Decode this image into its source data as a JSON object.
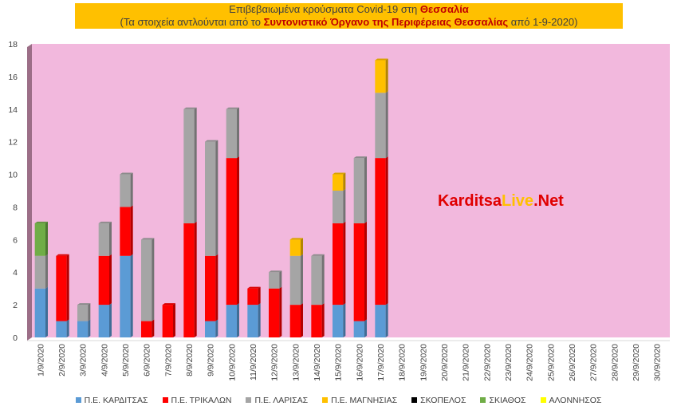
{
  "title": {
    "line1_prefix": "Επιβεβαιωμένα κρούσματα Covid-19 στη ",
    "line1_bold": "Θεσσαλία",
    "line2_prefix": "(Τα στοιχεία αντλούνται από το ",
    "line2_bold": "Συντονιστικό Όργανο της Περιφέρειας Θεσσαλίας",
    "line2_suffix": " από 1-9-2020)"
  },
  "watermark": {
    "part1": "Karditsa",
    "part2": "Live",
    "part3": ".Net"
  },
  "colors": {
    "plot_background": "#f2b8dd",
    "side_wall": "#9c6e87",
    "title_background": "#ffc000"
  },
  "chart_data": {
    "type": "bar",
    "stacked": true,
    "ylim": [
      0,
      18
    ],
    "yticks": [
      0,
      2,
      4,
      6,
      8,
      10,
      12,
      14,
      16,
      18
    ],
    "legend_position": "bottom",
    "categories": [
      "1/9/2020",
      "2/9/2020",
      "3/9/2020",
      "4/9/2020",
      "5/9/2020",
      "6/9/2020",
      "7/9/2020",
      "8/9/2020",
      "9/9/2020",
      "10/9/2020",
      "11/9/2020",
      "12/9/2020",
      "13/9/2020",
      "14/9/2020",
      "15/9/2020",
      "16/9/2020",
      "17/9/2020",
      "18/9/2020",
      "19/9/2020",
      "20/9/2020",
      "21/9/2020",
      "22/9/2020",
      "23/9/2020",
      "24/9/2020",
      "25/9/2020",
      "26/9/2020",
      "27/9/2020",
      "28/9/2020",
      "29/9/2020",
      "30/9/2020"
    ],
    "series": [
      {
        "name": "Π.Ε. ΚΑΡΔΙΤΣΑΣ",
        "color": "#5b9bd5",
        "values": [
          3,
          1,
          1,
          2,
          5,
          0,
          0,
          0,
          1,
          2,
          2,
          0,
          0,
          0,
          2,
          1,
          2,
          0,
          0,
          0,
          0,
          0,
          0,
          0,
          0,
          0,
          0,
          0,
          0,
          0
        ]
      },
      {
        "name": "Π.Ε. ΤΡΙΚΑΛΩΝ",
        "color": "#ff0000",
        "values": [
          0,
          4,
          0,
          3,
          3,
          1,
          2,
          7,
          4,
          9,
          1,
          3,
          2,
          2,
          5,
          6,
          9,
          0,
          0,
          0,
          0,
          0,
          0,
          0,
          0,
          0,
          0,
          0,
          0,
          0
        ]
      },
      {
        "name": "Π.Ε. ΛΑΡΙΣΑΣ",
        "color": "#a5a5a5",
        "values": [
          2,
          0,
          1,
          2,
          2,
          5,
          0,
          7,
          7,
          3,
          0,
          1,
          3,
          3,
          2,
          4,
          4,
          0,
          0,
          0,
          0,
          0,
          0,
          0,
          0,
          0,
          0,
          0,
          0,
          0
        ]
      },
      {
        "name": "Π.Ε. ΜΑΓΝΗΣΙΑΣ",
        "color": "#ffc000",
        "values": [
          0,
          0,
          0,
          0,
          0,
          0,
          0,
          0,
          0,
          0,
          0,
          0,
          1,
          0,
          1,
          0,
          2,
          0,
          0,
          0,
          0,
          0,
          0,
          0,
          0,
          0,
          0,
          0,
          0,
          0
        ]
      },
      {
        "name": "ΣΚΟΠΕΛΟΣ",
        "color": "#000000",
        "values": [
          0,
          0,
          0,
          0,
          0,
          0,
          0,
          0,
          0,
          0,
          0,
          0,
          0,
          0,
          0,
          0,
          0,
          0,
          0,
          0,
          0,
          0,
          0,
          0,
          0,
          0,
          0,
          0,
          0,
          0
        ]
      },
      {
        "name": "ΣΚΙΑΘΟΣ",
        "color": "#70ad47",
        "values": [
          2,
          0,
          0,
          0,
          0,
          0,
          0,
          0,
          0,
          0,
          0,
          0,
          0,
          0,
          0,
          0,
          0,
          0,
          0,
          0,
          0,
          0,
          0,
          0,
          0,
          0,
          0,
          0,
          0,
          0
        ]
      },
      {
        "name": "ΑΛΟΝΝΗΣΟΣ",
        "color": "#ffff00",
        "values": [
          0,
          0,
          0,
          0,
          0,
          0,
          0,
          0,
          0,
          0,
          0,
          0,
          0,
          0,
          0,
          0,
          0,
          0,
          0,
          0,
          0,
          0,
          0,
          0,
          0,
          0,
          0,
          0,
          0,
          0
        ]
      }
    ]
  }
}
